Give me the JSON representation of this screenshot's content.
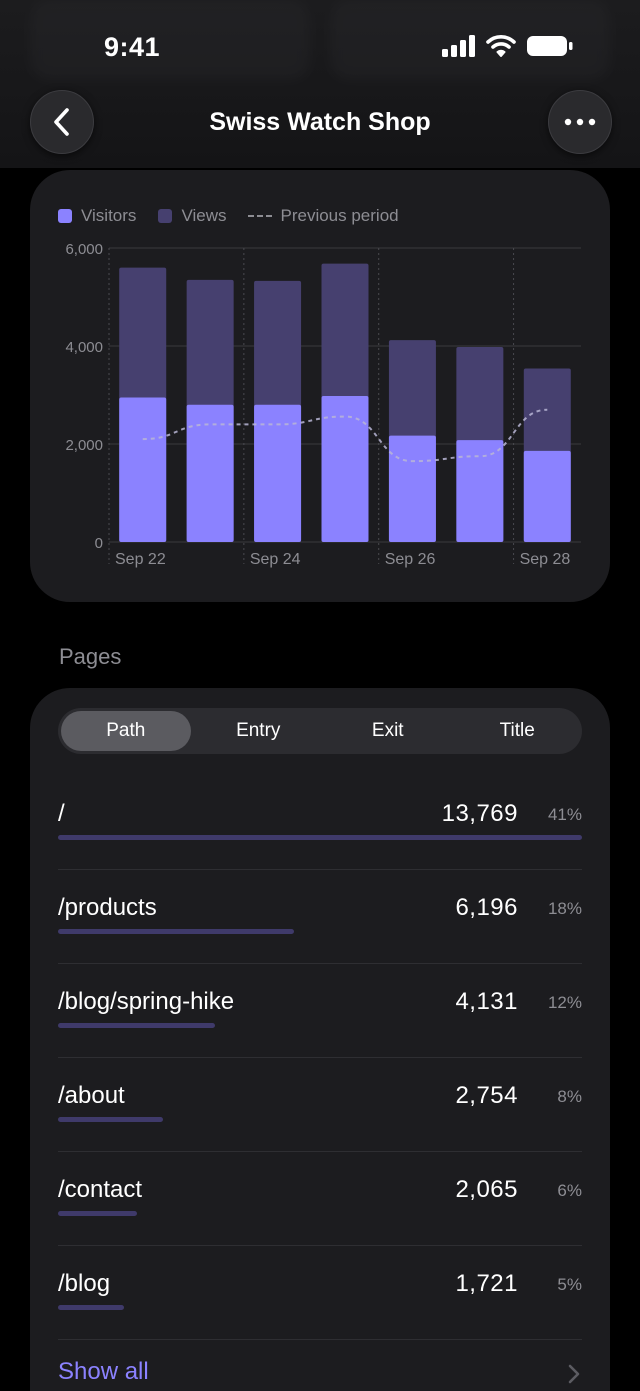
{
  "status_bar": {
    "time": "9:41"
  },
  "header": {
    "title": "Swiss Watch Shop"
  },
  "colors": {
    "visitors": "#8b82ff",
    "views": "#46406f",
    "accent": "#8b82ff",
    "card": "#1c1c1f"
  },
  "icons": {
    "back": "chevron-left-icon",
    "more": "ellipsis-icon",
    "signal": "cellular-signal-icon",
    "wifi": "wifi-icon",
    "battery": "battery-icon",
    "show_all": "chevron-right-icon"
  },
  "chart_data": {
    "type": "bar",
    "title": "",
    "legend": [
      "Visitors",
      "Views",
      "Previous period"
    ],
    "categories": [
      "Sep 22",
      "Sep 23",
      "Sep 24",
      "Sep 25",
      "Sep 26",
      "Sep 27",
      "Sep 28"
    ],
    "x_tick_labels": [
      "Sep 22",
      "Sep 24",
      "Sep 26",
      "Sep 28"
    ],
    "y_ticks": [
      "0",
      "2,000",
      "4,000",
      "6,000"
    ],
    "ylim": [
      0,
      6000
    ],
    "series": [
      {
        "name": "Visitors",
        "values": [
          2950,
          2800,
          2800,
          2980,
          2170,
          2080,
          1860
        ]
      },
      {
        "name": "Views",
        "values": [
          5600,
          5350,
          5330,
          5680,
          4120,
          3980,
          3540
        ]
      },
      {
        "name": "Previous period",
        "values": [
          2100,
          2400,
          2400,
          2560,
          1650,
          1750,
          2700
        ]
      }
    ],
    "grid": true,
    "legend_placement": "top-left"
  },
  "pages": {
    "title": "Pages",
    "tabs": [
      "Path",
      "Entry",
      "Exit",
      "Title"
    ],
    "active_tab": "Path",
    "rows": [
      {
        "path": "/",
        "count": "13,769",
        "pct": "41%",
        "share": 1.0
      },
      {
        "path": "/products",
        "count": "6,196",
        "pct": "18%",
        "share": 0.45
      },
      {
        "path": "/blog/spring-hike",
        "count": "4,131",
        "pct": "12%",
        "share": 0.3
      },
      {
        "path": "/about",
        "count": "2,754",
        "pct": "8%",
        "share": 0.2
      },
      {
        "path": "/contact",
        "count": "2,065",
        "pct": "6%",
        "share": 0.15
      },
      {
        "path": "/blog",
        "count": "1,721",
        "pct": "5%",
        "share": 0.125
      }
    ],
    "show_all": "Show all"
  }
}
